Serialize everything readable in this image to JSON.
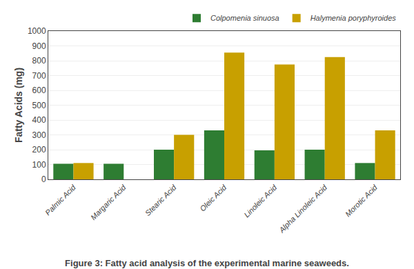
{
  "chart_data": {
    "type": "bar",
    "title": "Figure 3: Fatty acid analysis of the experimental marine seaweeds.",
    "ylabel": "Fatty Acids (mg)",
    "categories": [
      "Palmic Acid",
      "Margaric Acid",
      "Stearic Acid",
      "Oleic Acid",
      "Linoleic Acid",
      "Alpha Linoleic Acid",
      "Morotic Acid"
    ],
    "series": [
      {
        "name": "Colpomenia sinuosa",
        "color": "#2e7d32",
        "values": [
          105,
          105,
          200,
          330,
          195,
          200,
          110
        ]
      },
      {
        "name": "Halymenia poryphyroides",
        "color": "#c8a000",
        "values": [
          110,
          0,
          300,
          855,
          775,
          825,
          330
        ]
      }
    ],
    "ylim": [
      0,
      1000
    ],
    "yticks": [
      0,
      100,
      200,
      300,
      400,
      500,
      600,
      700,
      800,
      900,
      1000
    ],
    "grid": true,
    "legend": "upper right"
  }
}
